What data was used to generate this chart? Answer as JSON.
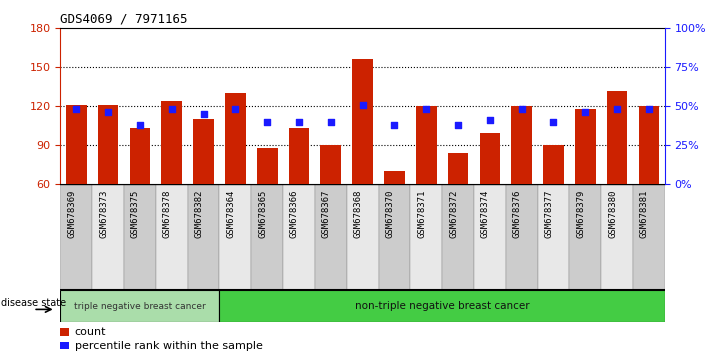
{
  "title": "GDS4069 / 7971165",
  "samples": [
    "GSM678369",
    "GSM678373",
    "GSM678375",
    "GSM678378",
    "GSM678382",
    "GSM678364",
    "GSM678365",
    "GSM678366",
    "GSM678367",
    "GSM678368",
    "GSM678370",
    "GSM678371",
    "GSM678372",
    "GSM678374",
    "GSM678376",
    "GSM678377",
    "GSM678379",
    "GSM678380",
    "GSM678381"
  ],
  "counts": [
    121,
    121,
    103,
    124,
    110,
    130,
    88,
    103,
    90,
    156,
    70,
    120,
    84,
    99,
    120,
    90,
    118,
    132,
    120
  ],
  "percentiles": [
    48,
    46,
    38,
    48,
    45,
    48,
    40,
    40,
    40,
    51,
    38,
    48,
    38,
    41,
    48,
    40,
    46,
    48,
    48
  ],
  "ylim_left": [
    60,
    180
  ],
  "ylim_right": [
    0,
    100
  ],
  "yticks_left": [
    60,
    90,
    120,
    150,
    180
  ],
  "yticks_right": [
    0,
    25,
    50,
    75,
    100
  ],
  "ytick_labels_right": [
    "0%",
    "25%",
    "50%",
    "75%",
    "100%"
  ],
  "group1_label": "triple negative breast cancer",
  "group2_label": "non-triple negative breast cancer",
  "group1_count": 5,
  "group2_count": 14,
  "bar_color": "#cc2200",
  "dot_color": "#1a1aff",
  "plot_bg": "#ffffff",
  "left_axis_color": "#cc2200",
  "right_axis_color": "#1a1aff",
  "tick_bg_odd": "#cccccc",
  "tick_bg_even": "#e8e8e8",
  "group1_color": "#aaddaa",
  "group2_color": "#44cc44",
  "legend_count_label": "count",
  "legend_percentile_label": "percentile rank within the sample",
  "disease_state_label": "disease state"
}
